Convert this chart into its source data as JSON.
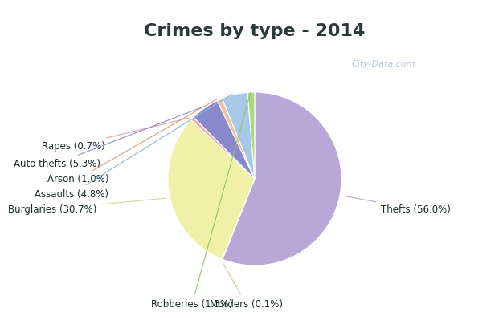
{
  "title": "Crimes by type - 2014",
  "title_color": "#2a3a3a",
  "title_fontsize": 16,
  "title_bg": "#00eeff",
  "chart_bg": "#d8ede0",
  "outer_bg": "#00eeff",
  "ordered_labels": [
    "Thefts",
    "Murders",
    "Burglaries",
    "Rapes",
    "Auto thefts",
    "Arson",
    "Assaults",
    "Robberies"
  ],
  "ordered_values": [
    56.0,
    0.1,
    30.7,
    0.7,
    5.3,
    1.0,
    4.8,
    1.3
  ],
  "ordered_colors": [
    "#b8a8d8",
    "#e0e0e0",
    "#f0f0a8",
    "#f0b0b0",
    "#8888cc",
    "#f0c0a0",
    "#a8c8e8",
    "#a8d880"
  ],
  "ordered_display": [
    "Thefts (56.0%)",
    "Murders (0.1%)",
    "Burglaries (30.7%)",
    "Rapes (0.7%)",
    "Auto thefts (5.3%)",
    "Arson (1.0%)",
    "Assaults (4.8%)",
    "Robberies (1.3%)"
  ],
  "label_color": "#1a2a2a",
  "label_fontsize": 8.5,
  "watermark": "City-Data.com",
  "watermark_color": "#aabbcc"
}
